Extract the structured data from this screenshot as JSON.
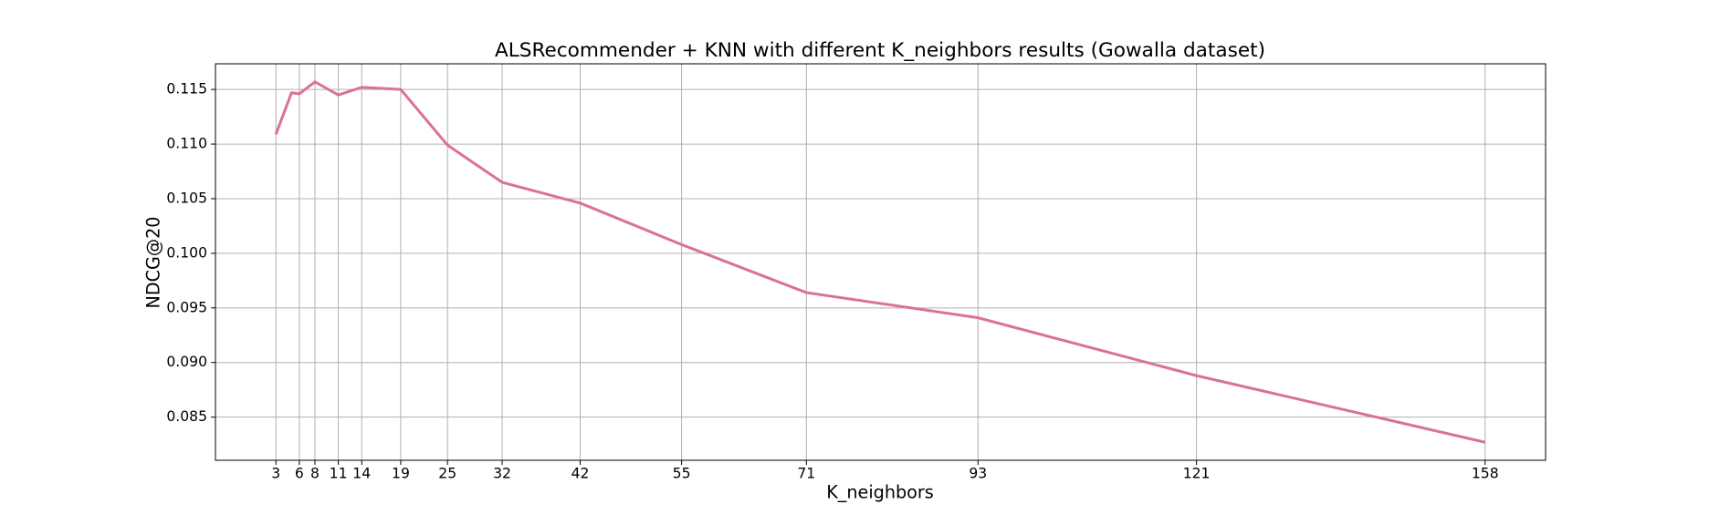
{
  "chart_data": {
    "type": "line",
    "title": "ALSRecommender + KNN with different K_neighbors results (Gowalla dataset)",
    "x_label": "K_neighbors",
    "y_label": "NDCG@20",
    "x": [
      3,
      5,
      6,
      8,
      11,
      14,
      19,
      25,
      32,
      42,
      55,
      71,
      93,
      121,
      158
    ],
    "values": [
      0.1109,
      0.1147,
      0.1146,
      0.1157,
      0.1145,
      0.1152,
      0.115,
      0.1099,
      0.1065,
      0.1046,
      0.1008,
      0.0964,
      0.0941,
      0.0888,
      0.0827
    ],
    "color": "#d9719a",
    "xlim": [
      -4.75,
      165.75
    ],
    "xticks": [
      3,
      6,
      8,
      11,
      14,
      19,
      25,
      32,
      42,
      55,
      71,
      93,
      121,
      158
    ],
    "ylim": [
      0.08105,
      0.11735
    ],
    "yticks": [
      0.085,
      {
        "value": 0.09,
        "label": "0.090"
      },
      0.095,
      {
        "value": 0.1,
        "label": "0.100"
      },
      0.105,
      {
        "value": 0.11,
        "label": "0.110"
      },
      0.115
    ],
    "grid": true
  }
}
